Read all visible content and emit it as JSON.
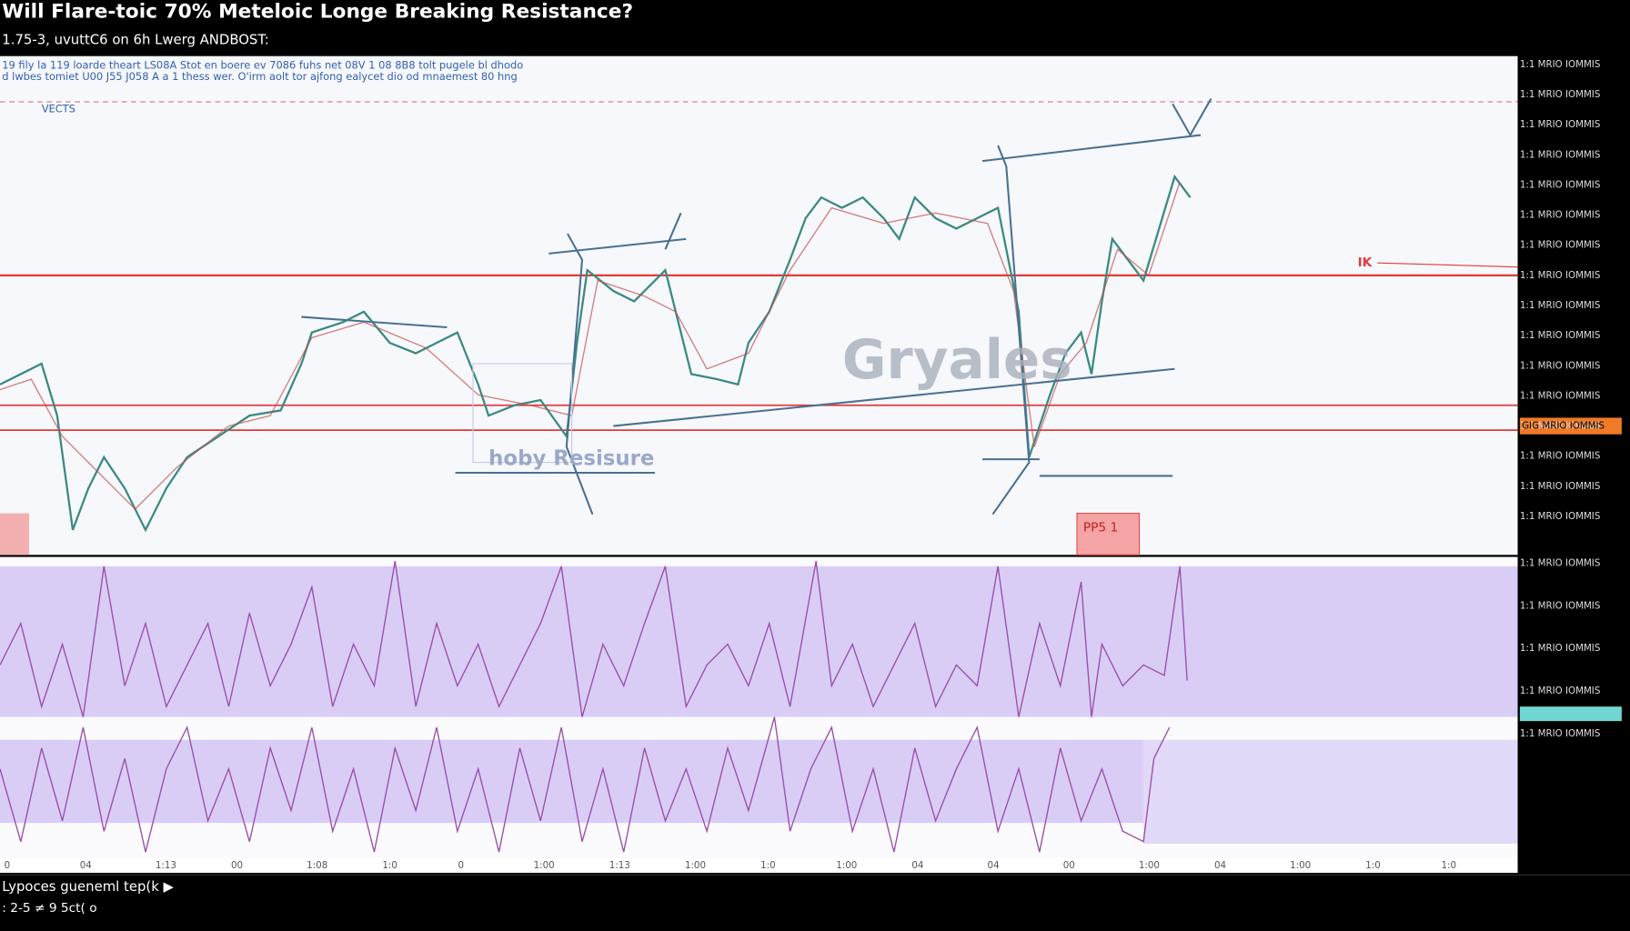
{
  "header": {
    "title": "Will Flare-toic 70% Meteloic Longe Breaking Resistance?",
    "subtitle": "1.75-3, uvuttC6 on 6h Lwerg ANDBOST:"
  },
  "chart_pane": {
    "notes": [
      "19 fily la 119 loarde theart LS08A Stot en boere ev 7086 fuhs net 08V 1 08 8B8 tolt pugele bl dhodo",
      "d lwbes tomiet U00 J55 J058 A a 1 thess wer. O'irm aolt tor ajfong ealycet dio od mnaemest 80 hng"
    ],
    "indicator_label": "VECTS",
    "watermark": "Gryales",
    "zone_label": "hoby Resisure",
    "level_tag": "IK",
    "box_label": "PP5 1"
  },
  "price_axis": [
    "1:1 MRIO IOMMIS",
    "1:1 MRIO IOMMIS",
    "1:1 MRIO IOMMIS",
    "1:1 MRIO IOMMIS",
    "1:1 MRIO IOMMIS",
    "1:1 MRIO IOMMIS",
    "1:1 MRIO IOMMIS",
    "1:1 MRIO IOMMIS",
    "1:1 MRIO IOMMIS",
    "1:1 MRIO IOMMIS",
    "1:1 MRIO IOMMIS",
    "1:1 MRIO IOMMIS",
    "1:1 MRIO IOMMIS",
    "1:1 MRIO IOMMIS",
    "1:1 MRIO IOMMIS",
    "1:1 MRIO IOMMIS"
  ],
  "highlight_price": "GIG MRIO IOMMIS",
  "osc_axis": [
    "1:1 MRIO IOMMIS",
    "1:1 MRIO IOMMIS",
    "1:1 MRIO IOMMIS",
    "1:1 MRIO IOMMIS",
    "1:1 MRIO IOMMIS"
  ],
  "time_axis": [
    "0",
    "04",
    "1:13",
    "00",
    "1:08",
    "1:0",
    "0",
    "1:00",
    "1:13",
    "1:00",
    "1:0",
    "1:00",
    "04",
    "04",
    "00",
    "1:00",
    "04",
    "1:00",
    "1:0",
    "1:0"
  ],
  "footer": {
    "line1": "Lypoces gueneml tep(k ▶",
    "line2": ": 2-5 ≠ 9 5ct( o"
  }
}
